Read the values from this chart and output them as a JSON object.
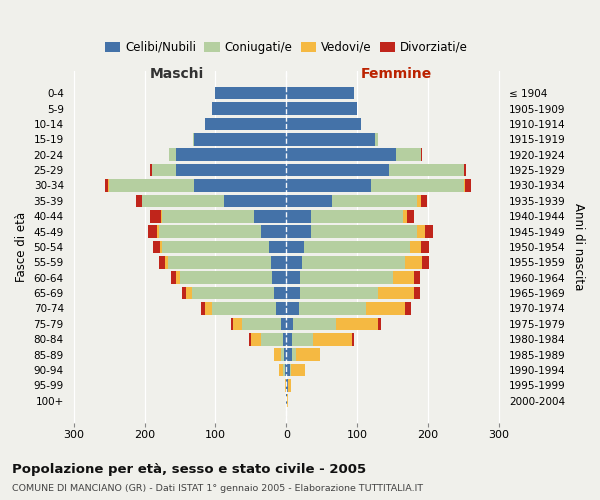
{
  "age_groups": [
    "0-4",
    "5-9",
    "10-14",
    "15-19",
    "20-24",
    "25-29",
    "30-34",
    "35-39",
    "40-44",
    "45-49",
    "50-54",
    "55-59",
    "60-64",
    "65-69",
    "70-74",
    "75-79",
    "80-84",
    "85-89",
    "90-94",
    "95-99",
    "100+"
  ],
  "birth_years": [
    "2000-2004",
    "1995-1999",
    "1990-1994",
    "1985-1989",
    "1980-1984",
    "1975-1979",
    "1970-1974",
    "1965-1969",
    "1960-1964",
    "1955-1959",
    "1950-1954",
    "1945-1949",
    "1940-1944",
    "1935-1939",
    "1930-1934",
    "1925-1929",
    "1920-1924",
    "1915-1919",
    "1910-1914",
    "1905-1909",
    "≤ 1904"
  ],
  "maschi_celibe": [
    100,
    105,
    115,
    130,
    155,
    155,
    130,
    88,
    45,
    35,
    25,
    22,
    20,
    18,
    15,
    8,
    5,
    3,
    2,
    1,
    1
  ],
  "maschi_coniugato": [
    0,
    0,
    0,
    2,
    10,
    35,
    120,
    115,
    130,
    145,
    150,
    145,
    130,
    115,
    90,
    55,
    30,
    5,
    3,
    0,
    0
  ],
  "maschi_vedovo": [
    0,
    0,
    0,
    0,
    0,
    0,
    1,
    1,
    2,
    3,
    3,
    4,
    5,
    8,
    10,
    12,
    15,
    10,
    5,
    1,
    0
  ],
  "maschi_divorziato": [
    0,
    0,
    0,
    0,
    1,
    3,
    5,
    8,
    15,
    12,
    10,
    8,
    8,
    6,
    5,
    3,
    2,
    0,
    0,
    0,
    0
  ],
  "femmine_celibe": [
    95,
    100,
    105,
    125,
    155,
    145,
    120,
    65,
    35,
    35,
    25,
    22,
    20,
    20,
    18,
    10,
    8,
    8,
    5,
    2,
    1
  ],
  "femmine_coniugata": [
    0,
    0,
    0,
    5,
    35,
    105,
    130,
    120,
    130,
    150,
    150,
    145,
    130,
    110,
    95,
    60,
    30,
    5,
    2,
    0,
    0
  ],
  "femmine_vedova": [
    0,
    0,
    0,
    0,
    0,
    1,
    2,
    5,
    5,
    10,
    15,
    25,
    30,
    50,
    55,
    60,
    55,
    35,
    20,
    5,
    1
  ],
  "femmine_divorziata": [
    0,
    0,
    0,
    0,
    1,
    3,
    8,
    8,
    10,
    12,
    12,
    10,
    8,
    8,
    8,
    3,
    2,
    0,
    0,
    0,
    0
  ],
  "colors": {
    "celibe": "#4472a8",
    "coniugato": "#b5cfa0",
    "vedovo": "#f5b942",
    "divorziato": "#c0251b"
  },
  "xlim": 310,
  "title_main": "Popolazione per età, sesso e stato civile - 2005",
  "title_sub": "COMUNE DI MANCIANO (GR) - Dati ISTAT 1° gennaio 2005 - Elaborazione TUTTITALIA.IT",
  "ylabel_left": "Fasce di età",
  "ylabel_right": "Anni di nascita",
  "xlabel_left": "Maschi",
  "xlabel_right": "Femmine",
  "bg_color": "#f0f0eb",
  "plot_bg": "#f0f0eb"
}
